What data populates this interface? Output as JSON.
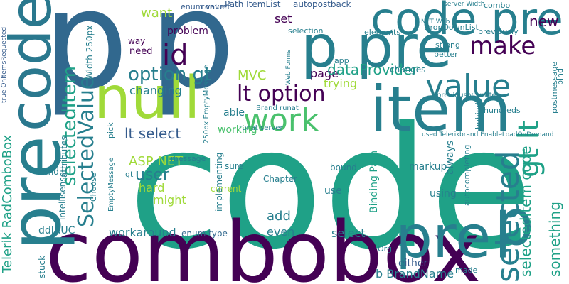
{
  "words": {
    "code": "code",
    "combobox": "combobox",
    "p_left": "p",
    "p_mid": "p",
    "pre_left": "pre",
    "code_left": "code",
    "null": "null",
    "item": "item",
    "p_pre": "p pre",
    "code_pre": "code pre",
    "pre_right": "pre",
    "p_right": "p",
    "value": "value",
    "work": "work",
    "id": "id",
    "make": "make",
    "lt_option": "lt option",
    "option_gt": "option gt",
    "selected": "selected",
    "gt_lt": "gt lt",
    "selectedItem": "selectedItem",
    "SelectedValue": "SelectedValue",
    "user": "user",
    "lt_select": "lt select",
    "ASP_NET": "ASP NET",
    "hard": "hard",
    "might": "might",
    "working": "working",
    "dataProvider": "dataProvider",
    "new": "new",
    "page": "page",
    "trying": "trying",
    "problem": "problem",
    "want": "want",
    "need": "need",
    "way": "way",
    "set": "set",
    "MVC": "MVC",
    "able": "able",
    "changing": "changing",
    "workaround": "workaround",
    "enum_type": "enum type",
    "add": "add",
    "even": "even",
    "select": "select",
    "either": "either",
    "b_BrandName": "b BrandName",
    "selectedItem_code": "selectedItem code",
    "Telerik_RadComboBox": "Telerik RadComboBox",
    "ddlRUC": "ddlRUC",
    "send": "send",
    "intellisense": "intellisense",
    "stuck": "stuck",
    "markup": "markup",
    "use": "use",
    "using": "using",
    "bound": "bound",
    "current": "current",
    "sure": "sure",
    "Binding_Path": "Binding Path",
    "always": "always",
    "something": "something",
    "enum_value": "enum value",
    "convert": "convert",
    "Path_ItemList": "Path ItemList",
    "autopostback": "autopostback",
    "combo": "combo",
    "previously": "previously",
    "better": "better",
    "strong": "strong",
    "changes": "changes",
    "selection": "selection",
    "elements": "elements",
    "DropDownList": "DropDownList",
    "hundreds": "hundreds",
    "bind": "bind",
    "postmessage": "postmessage",
    "Width_250px": "Width 250px",
    "EmptyMessage": "EmptyMessage",
    "attributes": "attributes",
    "Choose": "Choose",
    "message": "message",
    "pick": "pick",
    "gt": "gt",
    "Org": "Org",
    "made": "made",
    "runat_server": "runat server",
    "Brand_runat": "Brand runat",
    "implementing": "implementing",
    "Chapter": "Chapter",
    "autocompleting": "autocompleting",
    "behind": "behind",
    "previously_written": "previously written",
    "used_Telerik": "used Telerik",
    "brand_EnableLoadOnDemand": "brand EnableLoadOnDemand",
    "server_Width": "server Width",
    "NET_Web": "NET Web",
    "Web_Forms": "Web Forms",
    "app": "app",
    "true_OnItemsRequested": "true OnItemsRequested",
    "EmptyMessage_250px": "250px EmptyMessage"
  }
}
